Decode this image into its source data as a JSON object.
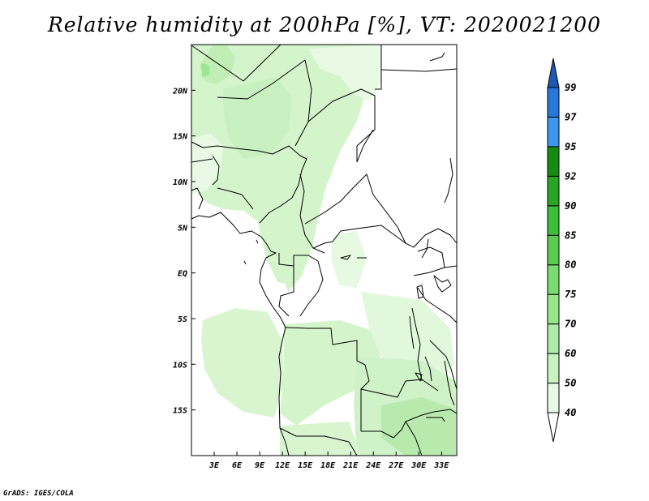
{
  "title": "Relative humidity at 200hPa [%], VT: 2020021200",
  "credit": "GrADS: IGES/COLA",
  "map": {
    "lon_range": [
      0,
      35
    ],
    "lat_range": [
      -20,
      25
    ],
    "lat_ticks": [
      "20N",
      "15N",
      "10N",
      "5N",
      "EQ",
      "5S",
      "10S",
      "15S"
    ],
    "lon_ticks": [
      "3E",
      "6E",
      "9E",
      "12E",
      "15E",
      "18E",
      "21E",
      "24E",
      "27E",
      "30E",
      "33E"
    ]
  },
  "colorbar": {
    "levels": [
      "40",
      "50",
      "60",
      "70",
      "75",
      "80",
      "85",
      "90",
      "92",
      "95",
      "97",
      "99"
    ],
    "colors": [
      "#ffffff",
      "#e6fae6",
      "#c8f2c0",
      "#b0ebaa",
      "#96e68c",
      "#78dc6e",
      "#5acd50",
      "#3cbe36",
      "#28a522",
      "#168c12",
      "#3c96f0",
      "#2878dc",
      "#1e5ab4"
    ]
  }
}
